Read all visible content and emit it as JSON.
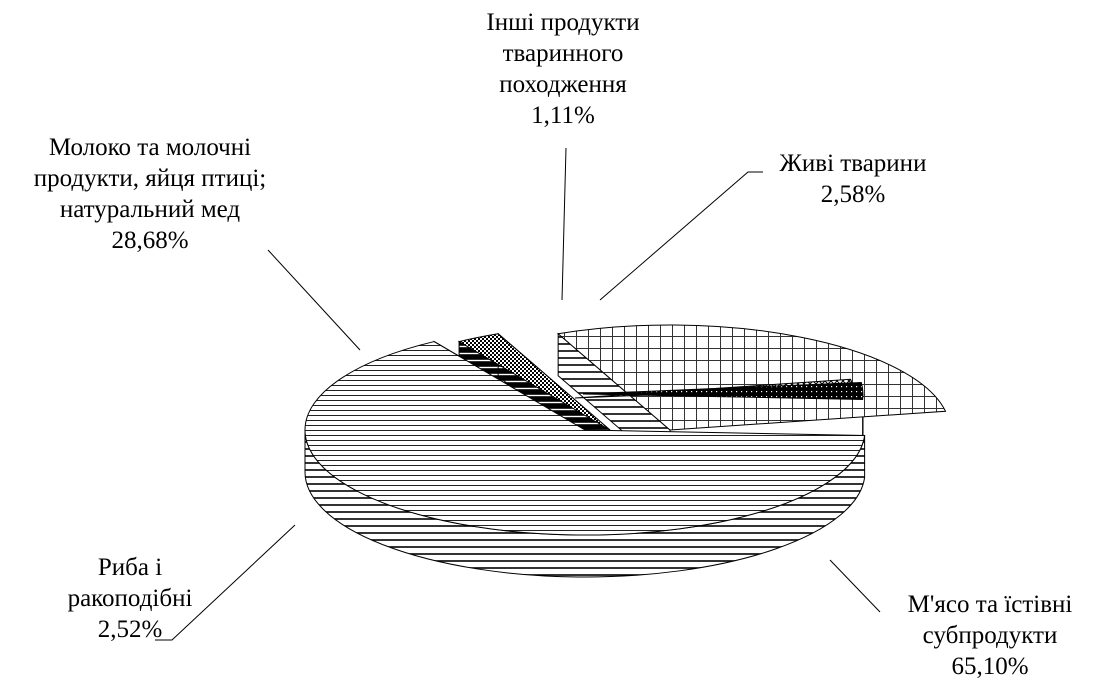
{
  "chart_data": {
    "type": "pie",
    "style": "3d-exploded",
    "title": "",
    "slices": [
      {
        "name": "М'ясо та їстівні субпродукти",
        "value": 65.1,
        "value_label": "65,10%",
        "lines": [
          "М'ясо та їстівні",
          "субпродукти"
        ],
        "pattern": "horizontal-lines"
      },
      {
        "name": "Риба і ракоподібні",
        "value": 2.52,
        "value_label": "2,52%",
        "lines": [
          "Риба і",
          "ракоподібні"
        ],
        "pattern": "dots"
      },
      {
        "name": "Молоко та молочні продукти, яйця птиці; натуральний мед",
        "value": 28.68,
        "value_label": "28,68%",
        "lines": [
          "Молоко та молочні",
          "продукти, яйця птиці;",
          "натуральний мед"
        ],
        "pattern": "grid"
      },
      {
        "name": "Інші продукти тваринного походження",
        "value": 1.11,
        "value_label": "1,11%",
        "lines": [
          "Інші продукти",
          "тваринного",
          "походження"
        ],
        "pattern": "checker"
      },
      {
        "name": "Живі тварини",
        "value": 2.58,
        "value_label": "2,58%",
        "lines": [
          "Живі тварини"
        ],
        "pattern": "dark"
      }
    ]
  }
}
